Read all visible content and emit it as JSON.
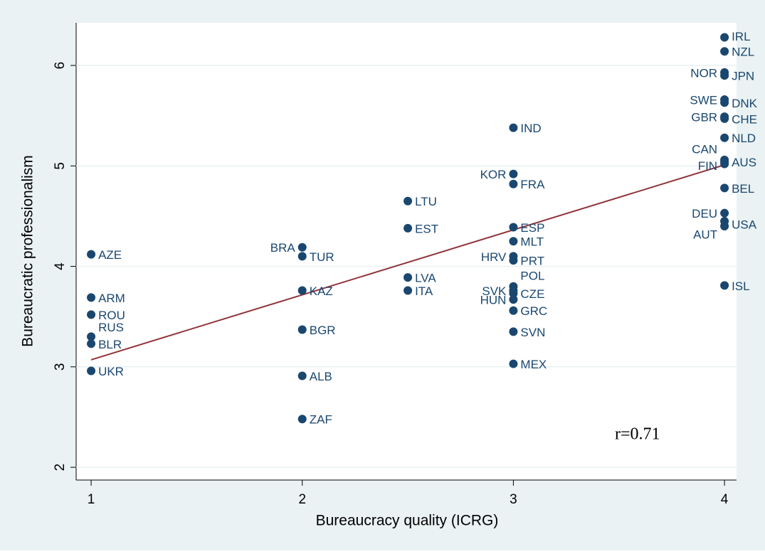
{
  "chart_data": {
    "type": "scatter",
    "xlabel": "Bureaucracy quality (ICRG)",
    "ylabel": "Bureaucratic professionalism",
    "annotation": "r=0.71",
    "color": "#1a476f",
    "fit_color": "#90353b",
    "grid": true,
    "xlim": [
      0.929,
      4.057
    ],
    "ylim": [
      1.873,
      6.425
    ],
    "xticks": [
      1,
      2,
      3,
      4
    ],
    "yticks": [
      2,
      3,
      4,
      5,
      6
    ],
    "point_labels": [
      "AZE",
      "ARM",
      "ROU",
      "RUS",
      "BLR",
      "UKR",
      "BRA",
      "TUR",
      "KAZ",
      "BGR",
      "ALB",
      "ZAF",
      "LTU",
      "EST",
      "LVA",
      "ITA",
      "IND",
      "KOR",
      "FRA",
      "ESP",
      "MLT",
      "HRV",
      "PRT",
      "POL",
      "SVK",
      "CZE",
      "HUN",
      "GRC",
      "SVN",
      "MEX",
      "IRL",
      "NZL",
      "NOR",
      "JPN",
      "SWE",
      "DNK",
      "GBR",
      "CHE",
      "NLD",
      "CAN",
      "AUS",
      "FIN",
      "BEL",
      "DEU",
      "USA",
      "AUT",
      "ISL"
    ],
    "x": [
      1,
      1,
      1,
      1,
      1,
      1,
      2,
      2,
      2,
      2,
      2,
      2,
      2.5,
      2.5,
      2.5,
      2.5,
      3,
      3,
      3,
      3,
      3,
      3,
      3,
      3,
      3,
      3,
      3,
      3,
      3,
      3,
      4,
      4,
      4,
      4,
      4,
      4,
      4,
      4,
      4,
      4,
      4,
      4,
      4,
      4,
      4,
      4,
      4
    ],
    "values": [
      4.12,
      3.69,
      3.52,
      3.3,
      3.23,
      2.96,
      4.19,
      4.1,
      3.76,
      3.37,
      2.91,
      2.48,
      4.65,
      4.38,
      3.89,
      3.76,
      5.38,
      4.92,
      4.82,
      4.39,
      4.25,
      4.1,
      4.06,
      3.8,
      3.76,
      3.73,
      3.67,
      3.56,
      3.35,
      3.03,
      6.28,
      6.14,
      5.93,
      5.9,
      5.66,
      5.63,
      5.49,
      5.47,
      5.28,
      5.06,
      5.04,
      5.02,
      4.78,
      4.53,
      4.45,
      4.4,
      3.81
    ],
    "fit_line": {
      "x": [
        1,
        4
      ],
      "y": [
        3.07,
        5.01
      ]
    }
  }
}
